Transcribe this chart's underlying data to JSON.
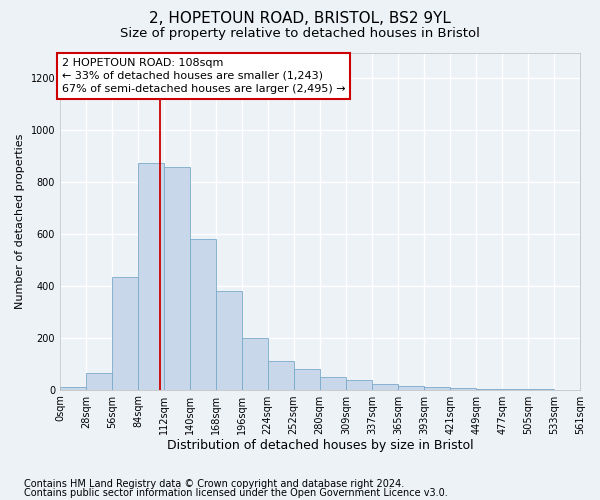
{
  "title1": "2, HOPETOUN ROAD, BRISTOL, BS2 9YL",
  "title2": "Size of property relative to detached houses in Bristol",
  "xlabel": "Distribution of detached houses by size in Bristol",
  "ylabel": "Number of detached properties",
  "bar_color": "#c8d8ea",
  "bar_edge_color": "#7aaacb",
  "heights": [
    10,
    65,
    435,
    875,
    860,
    580,
    380,
    200,
    110,
    80,
    50,
    38,
    20,
    15,
    10,
    5,
    3,
    2,
    1,
    0
  ],
  "bin_edges": [
    0,
    28,
    56,
    84,
    112,
    140,
    168,
    196,
    224,
    252,
    280,
    309,
    337,
    365,
    393,
    421,
    449,
    477,
    505,
    533,
    561
  ],
  "tick_labels": [
    "0sqm",
    "28sqm",
    "56sqm",
    "84sqm",
    "112sqm",
    "140sqm",
    "168sqm",
    "196sqm",
    "224sqm",
    "252sqm",
    "280sqm",
    "309sqm",
    "337sqm",
    "365sqm",
    "393sqm",
    "421sqm",
    "449sqm",
    "477sqm",
    "505sqm",
    "533sqm",
    "561sqm"
  ],
  "ylim": [
    0,
    1300
  ],
  "yticks": [
    0,
    200,
    400,
    600,
    800,
    1000,
    1200
  ],
  "red_line_x": 108,
  "annotation_text": "2 HOPETOUN ROAD: 108sqm\n← 33% of detached houses are smaller (1,243)\n67% of semi-detached houses are larger (2,495) →",
  "annotation_box_facecolor": "#ffffff",
  "annotation_box_edgecolor": "#cc0000",
  "red_line_color": "#cc0000",
  "fig_facecolor": "#edf2f7",
  "ax_facecolor": "#edf2f7",
  "grid_color": "#ffffff",
  "title1_fontsize": 11,
  "title2_fontsize": 9.5,
  "xlabel_fontsize": 9,
  "ylabel_fontsize": 8,
  "tick_fontsize": 7,
  "annot_fontsize": 8,
  "footer_fontsize": 7,
  "footer1": "Contains HM Land Registry data © Crown copyright and database right 2024.",
  "footer2": "Contains public sector information licensed under the Open Government Licence v3.0."
}
